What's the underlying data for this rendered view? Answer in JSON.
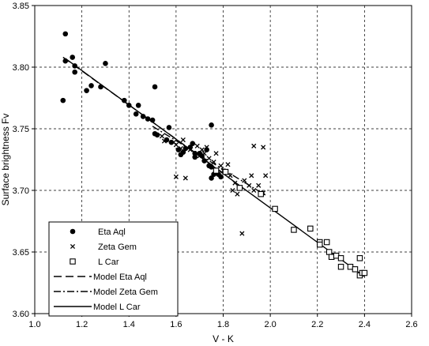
{
  "chart_data": {
    "type": "scatter",
    "xlabel": "V - K",
    "ylabel": "Surface brightness Fv",
    "xlim": [
      1.0,
      2.6
    ],
    "ylim": [
      3.6,
      3.85
    ],
    "x_ticks": [
      "1.0",
      "1.2",
      "1.4",
      "1.6",
      "1.8",
      "2.0",
      "2.2",
      "2.4",
      "2.6"
    ],
    "y_ticks": [
      "3.60",
      "3.65",
      "3.70",
      "3.75",
      "3.80",
      "3.85"
    ],
    "grid": true,
    "legend_position": "bottom-left",
    "series": [
      {
        "name": "Eta Aql",
        "marker": "dot",
        "points": [
          [
            1.12,
            3.773
          ],
          [
            1.13,
            3.827
          ],
          [
            1.13,
            3.805
          ],
          [
            1.16,
            3.808
          ],
          [
            1.17,
            3.801
          ],
          [
            1.17,
            3.796
          ],
          [
            1.22,
            3.781
          ],
          [
            1.24,
            3.785
          ],
          [
            1.28,
            3.784
          ],
          [
            1.3,
            3.803
          ],
          [
            1.38,
            3.773
          ],
          [
            1.4,
            3.769
          ],
          [
            1.43,
            3.762
          ],
          [
            1.44,
            3.769
          ],
          [
            1.46,
            3.76
          ],
          [
            1.48,
            3.758
          ],
          [
            1.5,
            3.757
          ],
          [
            1.51,
            3.746
          ],
          [
            1.51,
            3.784
          ],
          [
            1.52,
            3.745
          ],
          [
            1.57,
            3.751
          ],
          [
            1.56,
            3.741
          ],
          [
            1.58,
            3.739
          ],
          [
            1.61,
            3.733
          ],
          [
            1.62,
            3.729
          ],
          [
            1.63,
            3.731
          ],
          [
            1.64,
            3.734
          ],
          [
            1.66,
            3.735
          ],
          [
            1.67,
            3.738
          ],
          [
            1.68,
            3.73
          ],
          [
            1.68,
            3.727
          ],
          [
            1.7,
            3.73
          ],
          [
            1.71,
            3.728
          ],
          [
            1.72,
            3.724
          ],
          [
            1.73,
            3.733
          ],
          [
            1.74,
            3.72
          ],
          [
            1.75,
            3.719
          ],
          [
            1.75,
            3.71
          ],
          [
            1.76,
            3.713
          ],
          [
            1.75,
            3.753
          ],
          [
            1.77,
            3.716
          ],
          [
            1.78,
            3.713
          ],
          [
            1.79,
            3.711
          ]
        ]
      },
      {
        "name": "Zeta Gem",
        "marker": "x",
        "points": [
          [
            1.54,
            3.744
          ],
          [
            1.55,
            3.74
          ],
          [
            1.59,
            3.739
          ],
          [
            1.6,
            3.737
          ],
          [
            1.62,
            3.734
          ],
          [
            1.63,
            3.741
          ],
          [
            1.6,
            3.711
          ],
          [
            1.64,
            3.71
          ],
          [
            1.66,
            3.733
          ],
          [
            1.69,
            3.736
          ],
          [
            1.7,
            3.728
          ],
          [
            1.71,
            3.733
          ],
          [
            1.72,
            3.73
          ],
          [
            1.73,
            3.735
          ],
          [
            1.74,
            3.726
          ],
          [
            1.76,
            3.723
          ],
          [
            1.77,
            3.73
          ],
          [
            1.79,
            3.72
          ],
          [
            1.8,
            3.716
          ],
          [
            1.82,
            3.721
          ],
          [
            1.83,
            3.712
          ],
          [
            1.84,
            3.7
          ],
          [
            1.85,
            3.706
          ],
          [
            1.86,
            3.697
          ],
          [
            1.87,
            3.702
          ],
          [
            1.88,
            3.665
          ],
          [
            1.89,
            3.708
          ],
          [
            1.91,
            3.704
          ],
          [
            1.92,
            3.712
          ],
          [
            1.93,
            3.7
          ],
          [
            1.93,
            3.736
          ],
          [
            1.95,
            3.704
          ],
          [
            1.96,
            3.698
          ],
          [
            1.97,
            3.698
          ],
          [
            1.97,
            3.735
          ],
          [
            1.98,
            3.712
          ]
        ]
      },
      {
        "name": "L Car",
        "marker": "square",
        "points": [
          [
            1.77,
            3.716
          ],
          [
            1.81,
            3.715
          ],
          [
            1.87,
            3.702
          ],
          [
            1.96,
            3.697
          ],
          [
            2.02,
            3.685
          ],
          [
            2.1,
            3.668
          ],
          [
            2.17,
            3.669
          ],
          [
            2.21,
            3.658
          ],
          [
            2.21,
            3.656
          ],
          [
            2.24,
            3.658
          ],
          [
            2.25,
            3.65
          ],
          [
            2.26,
            3.646
          ],
          [
            2.28,
            3.647
          ],
          [
            2.3,
            3.645
          ],
          [
            2.3,
            3.638
          ],
          [
            2.34,
            3.638
          ],
          [
            2.36,
            3.636
          ],
          [
            2.38,
            3.645
          ],
          [
            2.38,
            3.631
          ],
          [
            2.39,
            3.633
          ],
          [
            2.4,
            3.633
          ]
        ]
      },
      {
        "name": "Model Eta Aql",
        "line_style": "dashed",
        "points": [
          [
            1.12,
            3.808
          ],
          [
            1.8,
            3.714
          ]
        ]
      },
      {
        "name": "Model Zeta Gem",
        "line_style": "dash-dot",
        "points": [
          [
            1.5,
            3.752
          ],
          [
            1.98,
            3.696
          ]
        ]
      },
      {
        "name": "Model L Car",
        "line_style": "solid",
        "points": [
          [
            1.13,
            3.807
          ],
          [
            2.4,
            3.63
          ]
        ]
      }
    ]
  }
}
